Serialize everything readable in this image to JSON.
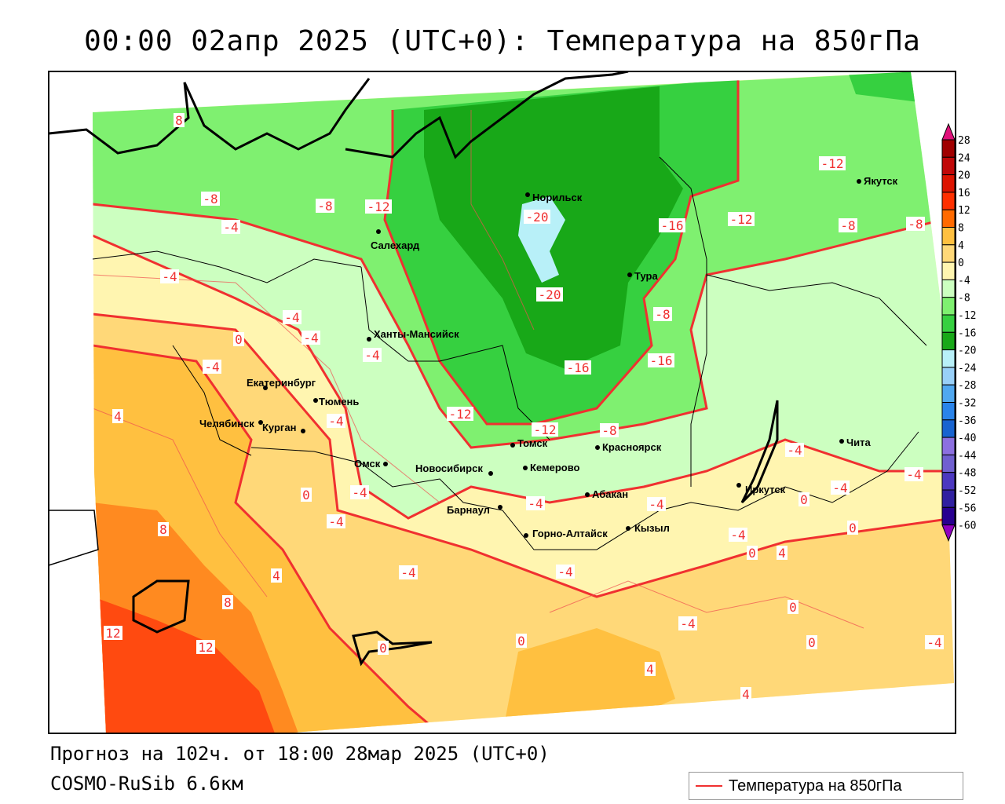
{
  "title": "00:00 02апр 2025 (UTC+0): Температура на 850гПа",
  "footer": {
    "forecast": "Прогноз на 102ч. от 18:00 28мар 2025 (UTC+0)",
    "model": "COSMO-RuSib 6.6км"
  },
  "legend": {
    "label": "Температура на 850гПа",
    "line_color": "#f03030"
  },
  "colorbar": {
    "labels": [
      "28",
      "24",
      "20",
      "16",
      "12",
      "8",
      "4",
      "0",
      "-4",
      "-8",
      "-12",
      "-16",
      "-20",
      "-24",
      "-28",
      "-32",
      "-36",
      "-40",
      "-44",
      "-48",
      "-52",
      "-56",
      "-60"
    ],
    "colors": [
      "#a00000",
      "#c00808",
      "#dc1400",
      "#ff3000",
      "#ff6a00",
      "#ffc040",
      "#ffd878",
      "#fff5b0",
      "#ccffc0",
      "#7ff070",
      "#36d040",
      "#18a818",
      "#b8f0f8",
      "#98d0f8",
      "#50a8f0",
      "#2a84ea",
      "#1864d0",
      "#8c70e0",
      "#7060d0",
      "#4c38c0",
      "#3020a0",
      "#280090"
    ],
    "top_color": "#e0107a",
    "bottom_color": "#9000c0"
  },
  "cities": [
    "Норильск",
    "Салехард",
    "Тура",
    "Якутск",
    "Ханты-Мансийск",
    "Екатеринбург",
    "Тюмень",
    "Челябинск",
    "Курган",
    "Омск",
    "Новосибирск",
    "Томск",
    "Кемерово",
    "Красноярск",
    "Абакан",
    "Барнаул",
    "Горно-Алтайск",
    "Кызыл",
    "Иркутск",
    "Чита"
  ],
  "contour_labels": [
    "8",
    "-8",
    "-8",
    "-12",
    "-4",
    "-4",
    "-4",
    "-4",
    "0",
    "-4",
    "-4",
    "-4",
    "-20",
    "-20",
    "-16",
    "-16",
    "-12",
    "-8",
    "-12",
    "-16",
    "-8",
    "-12",
    "-8",
    "-12",
    "-8",
    "-4",
    "-4",
    "-4",
    "0",
    "-4",
    "-4",
    "4",
    "8",
    "4",
    "8",
    "12",
    "12",
    "0",
    "0",
    "4",
    "-4",
    "4",
    "0",
    "-4",
    "0",
    "-4",
    "-4",
    "0",
    "4",
    "0",
    "0",
    "-4",
    "-4",
    "-4"
  ]
}
